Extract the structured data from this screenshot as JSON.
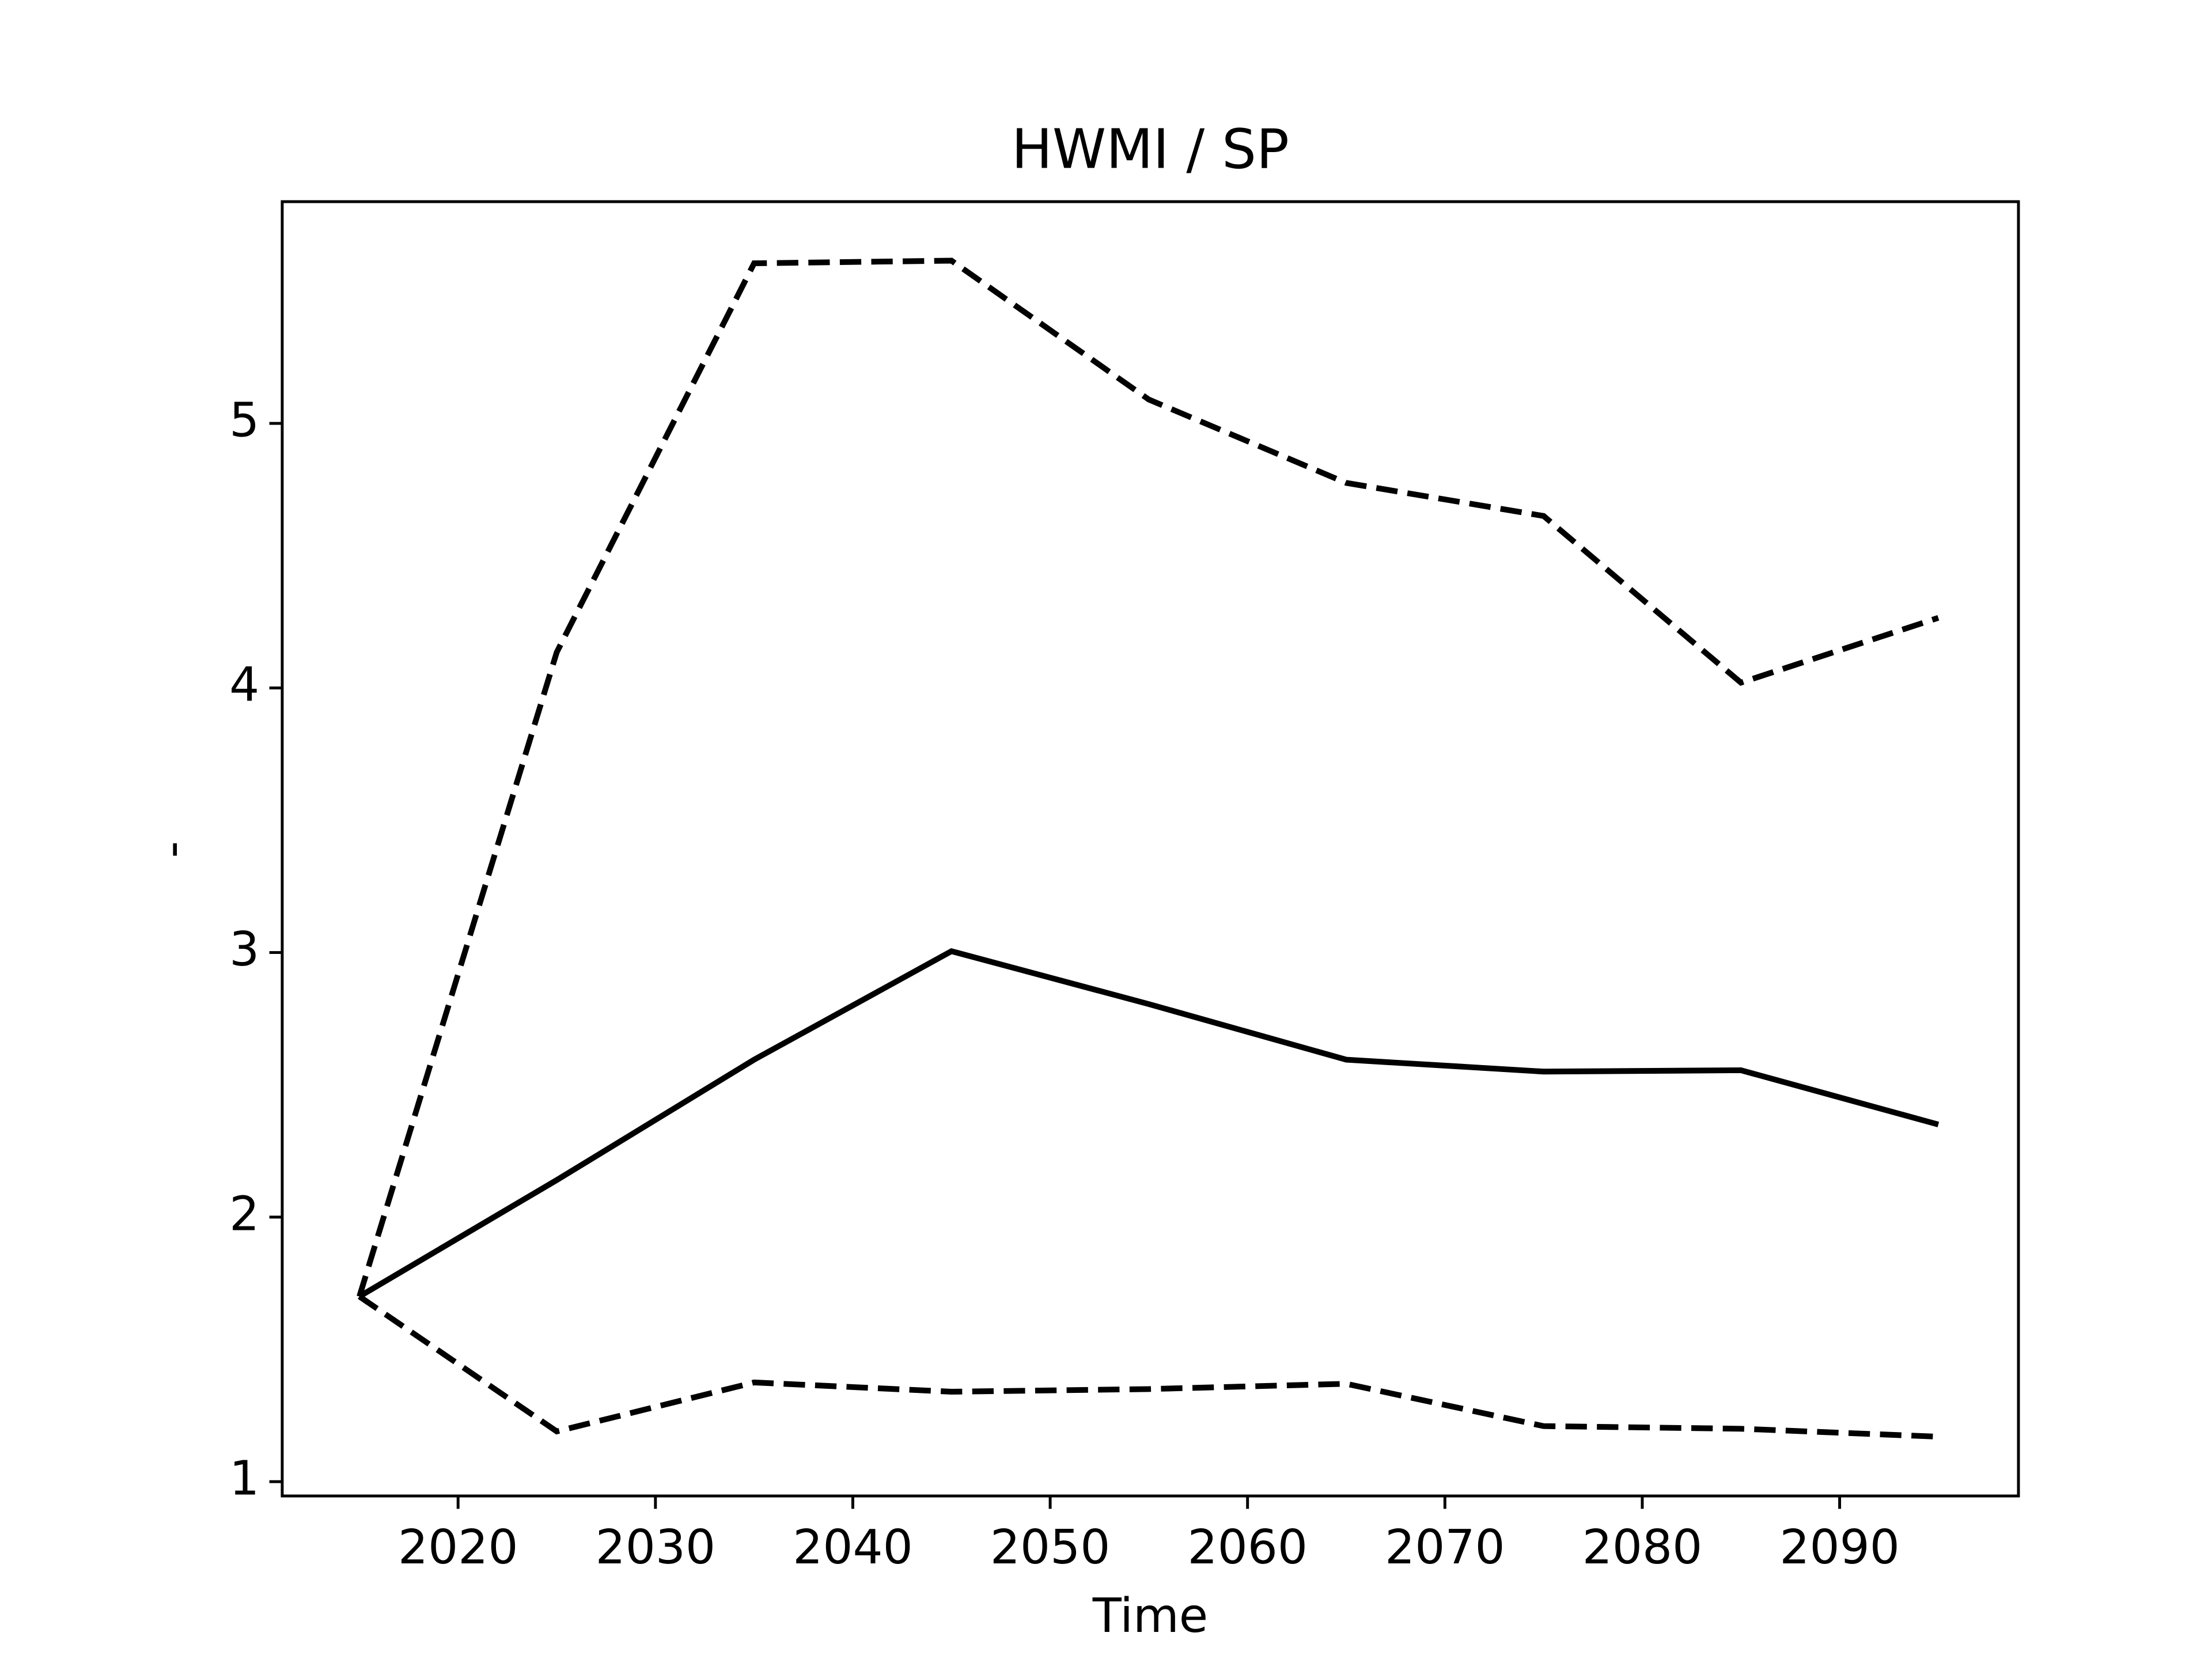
{
  "chart_data": {
    "type": "line",
    "title": "HWMI / SP",
    "xlabel": "Time",
    "ylabel": "-",
    "x": [
      2015,
      2025,
      2035,
      2045,
      2055,
      2065,
      2075,
      2085,
      2095
    ],
    "series": [
      {
        "color": "#000000",
        "linestyle": "solid",
        "values": [
          1.7,
          2.14,
          2.595,
          3.005,
          2.805,
          2.595,
          2.55,
          2.555,
          2.35
        ]
      },
      {
        "color": "#000000",
        "linestyle": "dashed",
        "values": [
          1.7,
          4.135,
          5.605,
          5.615,
          5.09,
          4.775,
          4.65,
          4.02,
          4.265
        ]
      },
      {
        "color": "#000000",
        "linestyle": "dashed",
        "values": [
          1.7,
          1.19,
          1.375,
          1.34,
          1.35,
          1.37,
          1.21,
          1.2,
          1.17
        ]
      }
    ],
    "xlim": [
      2011.09,
      2099.06
    ],
    "xticks": [
      2020,
      2030,
      2040,
      2050,
      2060,
      2070,
      2080,
      2090
    ],
    "ylim": [
      0.946,
      5.838
    ],
    "yticks": [
      1,
      2,
      3,
      4,
      5
    ]
  }
}
